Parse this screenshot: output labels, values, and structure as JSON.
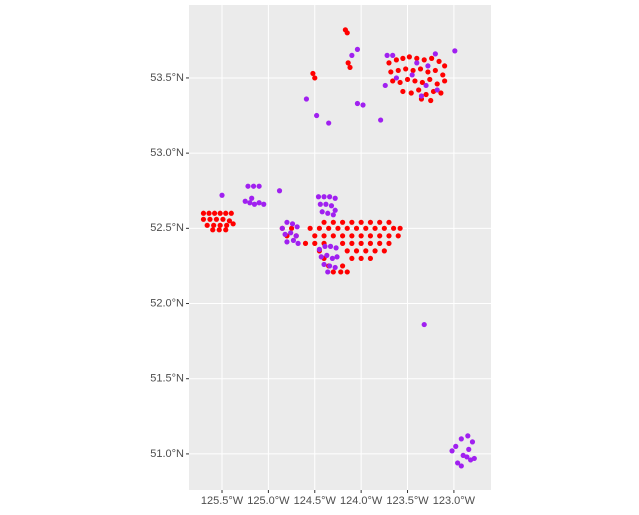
{
  "chart_data": {
    "type": "scatter",
    "xlim": [
      -125.856,
      -122.6
    ],
    "ylim": [
      50.76,
      53.985
    ],
    "xticks": [
      {
        "value": -125.5,
        "label": "125.5°W"
      },
      {
        "value": -125.0,
        "label": "125.0°W"
      },
      {
        "value": -124.5,
        "label": "124.5°W"
      },
      {
        "value": -124.0,
        "label": "124.0°W"
      },
      {
        "value": -123.5,
        "label": "123.5°W"
      },
      {
        "value": -123.0,
        "label": "123.0°W"
      }
    ],
    "yticks": [
      {
        "value": 51.0,
        "label": "51.0°N"
      },
      {
        "value": 51.5,
        "label": "51.5°N"
      },
      {
        "value": 52.0,
        "label": "52.0°N"
      },
      {
        "value": 52.5,
        "label": "52.5°N"
      },
      {
        "value": 53.0,
        "label": "53.0°N"
      },
      {
        "value": 53.5,
        "label": "53.5°N"
      }
    ],
    "grid": true,
    "series": [
      {
        "color": "#ff0000",
        "x": [
          -123.7,
          -123.62,
          -123.55,
          -123.48,
          -123.4,
          -123.32,
          -123.24,
          -123.16,
          -123.1,
          -123.68,
          -123.6,
          -123.52,
          -123.44,
          -123.36,
          -123.28,
          -123.2,
          -123.12,
          -123.66,
          -123.58,
          -123.5,
          -123.42,
          -123.34,
          -123.26,
          -123.18,
          -123.1,
          -123.55,
          -123.46,
          -123.38,
          -123.3,
          -123.22,
          -123.14,
          -123.35,
          -123.25,
          -124.17,
          -124.15,
          -124.52,
          -124.5,
          -124.14,
          -124.12,
          -125.7,
          -125.64,
          -125.58,
          -125.52,
          -125.46,
          -125.4,
          -125.7,
          -125.63,
          -125.56,
          -125.49,
          -125.42,
          -125.66,
          -125.59,
          -125.52,
          -125.45,
          -125.6,
          -125.53,
          -125.46,
          -125.38,
          -124.4,
          -124.3,
          -124.2,
          -124.1,
          -124.0,
          -123.9,
          -123.8,
          -123.7,
          -124.85,
          -124.75,
          -124.55,
          -124.45,
          -124.35,
          -124.25,
          -124.15,
          -124.05,
          -123.95,
          -123.85,
          -123.75,
          -123.65,
          -123.58,
          -124.8,
          -124.7,
          -124.5,
          -124.4,
          -124.3,
          -124.2,
          -124.1,
          -124.0,
          -123.9,
          -123.8,
          -123.7,
          -123.6,
          -124.6,
          -124.5,
          -124.4,
          -124.2,
          -124.1,
          -124.0,
          -123.9,
          -123.8,
          -123.7,
          -124.45,
          -124.15,
          -124.05,
          -123.95,
          -123.85,
          -123.75,
          -124.4,
          -124.1,
          -124.0,
          -123.9,
          -124.35,
          -124.2,
          -124.3,
          -124.22,
          -124.15
        ],
        "values": [
          53.6,
          53.62,
          53.63,
          53.64,
          53.63,
          53.62,
          53.63,
          53.61,
          53.58,
          53.54,
          53.55,
          53.56,
          53.55,
          53.56,
          53.54,
          53.55,
          53.52,
          53.48,
          53.47,
          53.49,
          53.48,
          53.47,
          53.49,
          53.46,
          53.48,
          53.41,
          53.4,
          53.42,
          53.39,
          53.41,
          53.4,
          53.36,
          53.35,
          53.82,
          53.8,
          53.53,
          53.5,
          53.6,
          53.57,
          52.6,
          52.6,
          52.6,
          52.6,
          52.6,
          52.6,
          52.56,
          52.56,
          52.56,
          52.56,
          52.55,
          52.52,
          52.52,
          52.52,
          52.52,
          52.49,
          52.49,
          52.49,
          52.53,
          52.54,
          52.54,
          52.54,
          52.54,
          52.54,
          52.54,
          52.54,
          52.54,
          52.5,
          52.5,
          52.5,
          52.5,
          52.5,
          52.5,
          52.5,
          52.5,
          52.5,
          52.5,
          52.5,
          52.5,
          52.5,
          52.45,
          52.45,
          52.45,
          52.45,
          52.45,
          52.45,
          52.45,
          52.45,
          52.45,
          52.45,
          52.45,
          52.45,
          52.4,
          52.4,
          52.4,
          52.4,
          52.4,
          52.4,
          52.4,
          52.4,
          52.4,
          52.35,
          52.35,
          52.35,
          52.35,
          52.35,
          52.35,
          52.3,
          52.3,
          52.3,
          52.3,
          52.25,
          52.25,
          52.21,
          52.21,
          52.21
        ]
      },
      {
        "color": "#a020f0",
        "x": [
          -123.72,
          -123.4,
          -123.28,
          -123.2,
          -122.99,
          -123.45,
          -123.3,
          -123.62,
          -123.35,
          -123.18,
          -124.59,
          -124.48,
          -124.35,
          -124.04,
          -123.98,
          -123.79,
          -124.04,
          -123.66,
          -123.74,
          -124.1,
          -125.5,
          -124.88,
          -125.22,
          -125.16,
          -125.1,
          -125.25,
          -125.2,
          -125.15,
          -125.1,
          -125.05,
          -125.18,
          -124.46,
          -124.4,
          -124.34,
          -124.28,
          -124.44,
          -124.38,
          -124.32,
          -124.28,
          -124.42,
          -124.36,
          -124.3,
          -124.85,
          -124.8,
          -124.74,
          -124.69,
          -124.82,
          -124.76,
          -124.7,
          -124.8,
          -124.73,
          -124.68,
          -124.45,
          -124.39,
          -124.33,
          -124.27,
          -124.43,
          -124.37,
          -124.31,
          -124.26,
          -124.4,
          -124.34,
          -124.28,
          -124.36,
          -123.32,
          -123.02,
          -122.98,
          -122.92,
          -122.85,
          -122.8,
          -122.84,
          -122.9,
          -122.96,
          -122.92,
          -122.82,
          -122.78,
          -122.86
        ],
        "values": [
          53.65,
          53.6,
          53.58,
          53.66,
          53.68,
          53.52,
          53.45,
          53.5,
          53.38,
          53.42,
          53.36,
          53.25,
          53.2,
          53.33,
          53.32,
          53.22,
          53.69,
          53.65,
          53.45,
          53.65,
          52.72,
          52.75,
          52.78,
          52.78,
          52.78,
          52.68,
          52.67,
          52.66,
          52.67,
          52.66,
          52.7,
          52.71,
          52.71,
          52.71,
          52.7,
          52.66,
          52.66,
          52.65,
          52.62,
          52.61,
          52.6,
          52.59,
          52.5,
          52.54,
          52.53,
          52.51,
          52.46,
          52.47,
          52.45,
          52.41,
          52.42,
          52.4,
          52.36,
          52.38,
          52.38,
          52.37,
          52.31,
          52.32,
          52.3,
          52.31,
          52.26,
          52.25,
          52.24,
          52.21,
          51.86,
          51.02,
          51.05,
          51.1,
          51.12,
          51.08,
          51.03,
          50.99,
          50.94,
          50.92,
          50.96,
          50.97,
          50.98
        ]
      }
    ]
  }
}
